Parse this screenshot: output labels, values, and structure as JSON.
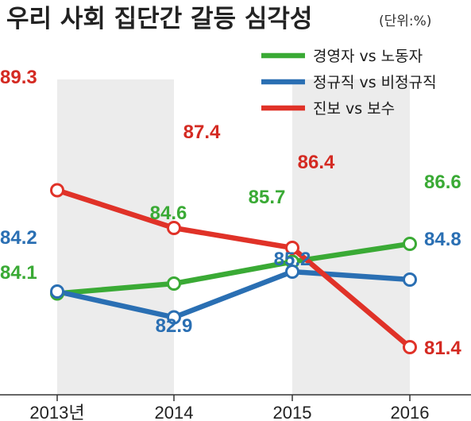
{
  "chart_data": {
    "type": "line",
    "title": "우리 사회 집단간 갈등 심각성",
    "unit": "(단위:%)",
    "x": [
      "2013년",
      "2014",
      "2015",
      "2016"
    ],
    "legend_position": "top-right",
    "series": [
      {
        "name": "경영자 vs 노동자",
        "color": "#3aaa35",
        "values": [
          84.1,
          84.6,
          85.7,
          86.6
        ]
      },
      {
        "name": "정규직 vs 비정규직",
        "color": "#2a6fb3",
        "values": [
          84.2,
          82.9,
          85.2,
          84.8
        ]
      },
      {
        "name": "진보 vs 보수",
        "color": "#e03228",
        "values": [
          89.3,
          87.4,
          86.4,
          81.4
        ]
      }
    ],
    "data_labels": [
      [
        "84.1",
        "84.6",
        "85.7",
        "86.6"
      ],
      [
        "84.2",
        "82.9",
        "85.2",
        "84.8"
      ],
      [
        "89.3",
        "87.4",
        "86.4",
        "81.4"
      ]
    ],
    "label_colors": [
      "#3aaa35",
      "#2a6fb3",
      "#d42a22"
    ]
  }
}
